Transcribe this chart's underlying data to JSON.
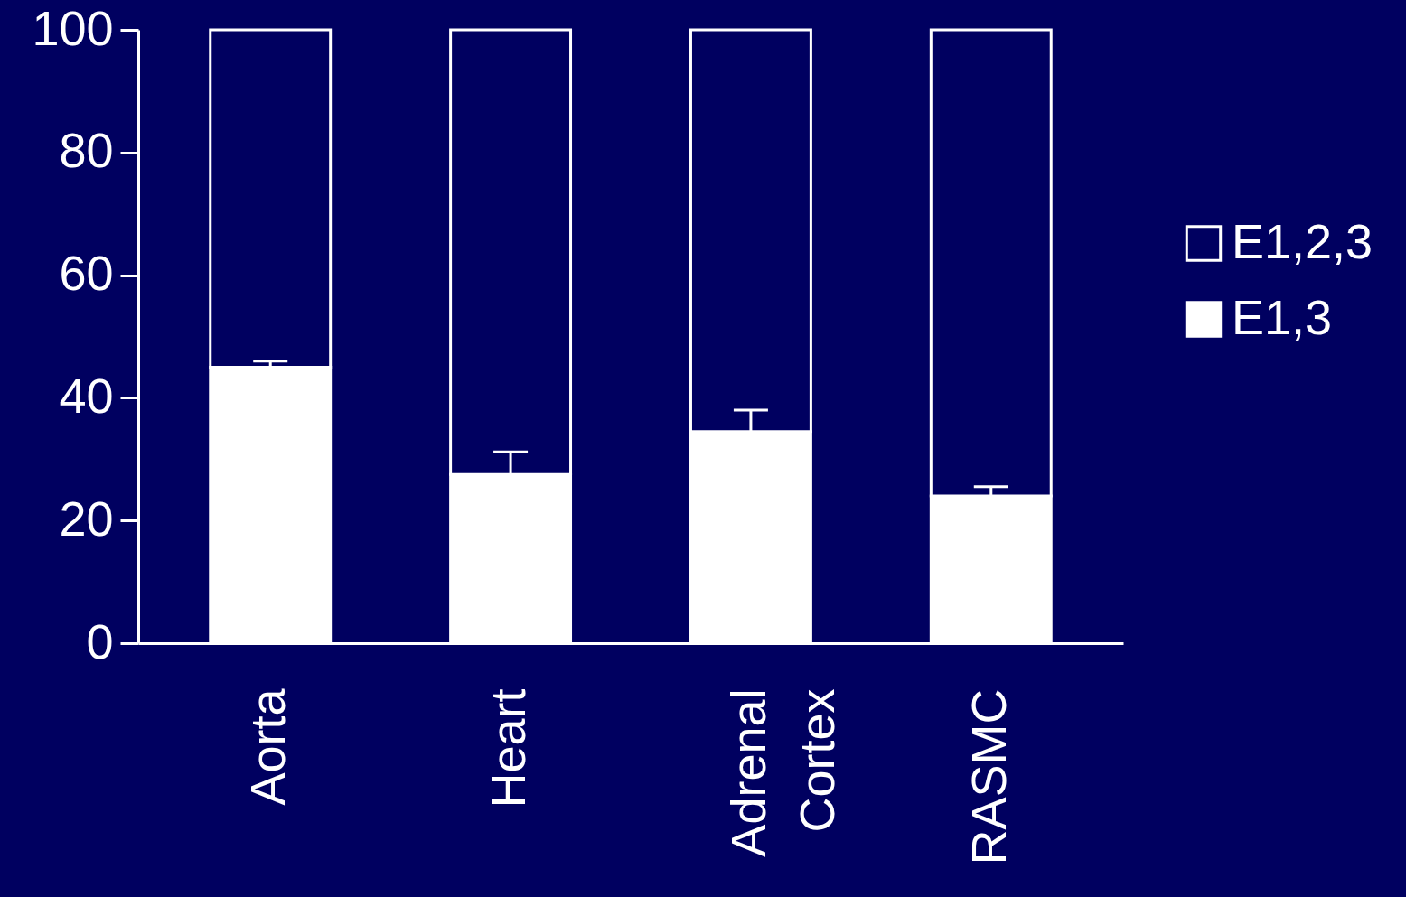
{
  "chart_data": {
    "type": "bar",
    "stacked": true,
    "categories": [
      "Aorta",
      "Heart",
      "Adrenal Cortex",
      "RASMC"
    ],
    "series": [
      {
        "name": "E1,3",
        "color": "#ffffff",
        "values": [
          45,
          27.5,
          34.5,
          24
        ],
        "errors": [
          [
            45,
            46
          ],
          [
            27.5,
            31.2
          ],
          [
            34.5,
            38
          ],
          [
            24,
            25.5
          ]
        ]
      },
      {
        "name": "E1,2,3",
        "color": "#000060",
        "values": [
          55,
          72.5,
          65.5,
          76
        ]
      }
    ],
    "ylim": [
      0,
      100
    ],
    "yticks": [
      0,
      20,
      40,
      60,
      80,
      100
    ],
    "grid": false,
    "legend": "right"
  }
}
